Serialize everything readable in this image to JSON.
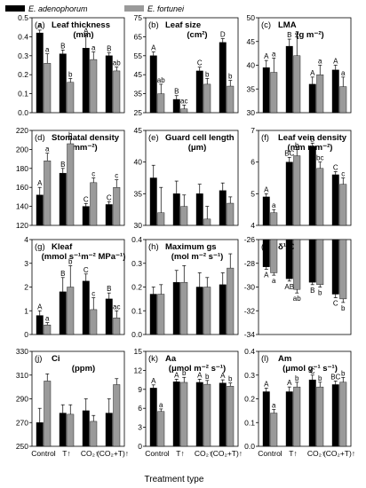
{
  "legend": [
    {
      "name": "E. adenophorum",
      "color": "#000000"
    },
    {
      "name": "E. fortunei",
      "color": "#9a9a9a"
    }
  ],
  "x_axis_title": "Treatment type",
  "chart_data": [
    {
      "type": "bar",
      "panel": "(a)",
      "title": "Leaf thickness",
      "unit": "(mm)",
      "categories": [
        "Control",
        "T↑",
        "CO₂↑",
        "(CO₂+T)↑"
      ],
      "ylim": [
        0,
        0.5
      ],
      "yticks": [
        "0.0",
        "0.1",
        "0.2",
        "0.3",
        "0.4",
        "0.5"
      ],
      "series": [
        {
          "name": "E. adenophorum",
          "values": [
            0.42,
            0.31,
            0.34,
            0.3
          ],
          "errors": [
            0.015,
            0.02,
            0.07,
            0.015
          ]
        },
        {
          "name": "E. fortunei",
          "values": [
            0.26,
            0.16,
            0.28,
            0.22
          ],
          "errors": [
            0.05,
            0.02,
            0.04,
            0.02
          ]
        }
      ],
      "labels": [
        [
          "A",
          "a"
        ],
        [
          "B",
          "b"
        ],
        [
          "A",
          "a"
        ],
        [
          "B",
          "ab"
        ]
      ]
    },
    {
      "type": "bar",
      "panel": "(b)",
      "title": "Leaf size",
      "unit": "(cm²)",
      "categories": [
        "Control",
        "T↑",
        "CO₂↑",
        "(CO₂+T)↑"
      ],
      "ylim": [
        25,
        75
      ],
      "yticks": [
        "25",
        "35",
        "45",
        "55",
        "65",
        "75"
      ],
      "series": [
        {
          "name": "E. adenophorum",
          "values": [
            55,
            32,
            47,
            62
          ],
          "errors": [
            2,
            2,
            2,
            2
          ]
        },
        {
          "name": "E. fortunei",
          "values": [
            35,
            27,
            40,
            39
          ],
          "errors": [
            5,
            2,
            3,
            3
          ]
        }
      ],
      "labels": [
        [
          "A",
          "ab"
        ],
        [
          "B",
          "ac"
        ],
        [
          "C",
          "b"
        ],
        [
          "D",
          "b"
        ]
      ]
    },
    {
      "type": "bar",
      "panel": "(c)",
      "title": "LMA",
      "unit": "(g m⁻²)",
      "categories": [
        "Control",
        "T↑",
        "CO₂↑",
        "(CO₂+T)↑"
      ],
      "ylim": [
        30,
        50
      ],
      "yticks": [
        "30",
        "35",
        "40",
        "45",
        "50"
      ],
      "series": [
        {
          "name": "E. adenophorum",
          "values": [
            39.5,
            44,
            36,
            39
          ],
          "errors": [
            1.5,
            1.5,
            1.5,
            1
          ]
        },
        {
          "name": "E. fortunei",
          "values": [
            38.5,
            42,
            38,
            35.5
          ],
          "errors": [
            3,
            4,
            2,
            2
          ]
        }
      ],
      "labels": [
        [
          "A",
          "a"
        ],
        [
          "B",
          "a"
        ],
        [
          "A",
          "a"
        ],
        [
          "A",
          "a"
        ]
      ]
    },
    {
      "type": "bar",
      "panel": "(d)",
      "title": "Stomatal density",
      "unit": "(mm⁻²)",
      "categories": [
        "Control",
        "T↑",
        "CO₂↑",
        "(CO₂+T)↑"
      ],
      "ylim": [
        120,
        220
      ],
      "yticks": [
        "120",
        "140",
        "160",
        "180",
        "200",
        "220"
      ],
      "series": [
        {
          "name": "E. adenophorum",
          "values": [
            152,
            175,
            140,
            142
          ],
          "errors": [
            8,
            5,
            3,
            3
          ]
        },
        {
          "name": "E. fortunei",
          "values": [
            188,
            206,
            165,
            160
          ],
          "errors": [
            8,
            5,
            5,
            8
          ]
        }
      ],
      "labels": [
        [
          "A",
          "a"
        ],
        [
          "B",
          "b"
        ],
        [
          "C",
          "c"
        ],
        [
          "C",
          "c"
        ]
      ]
    },
    {
      "type": "bar",
      "panel": "(e)",
      "title": "Guard cell length",
      "unit": "(μm)",
      "categories": [
        "Control",
        "T↑",
        "CO₂↑",
        "(CO₂+T)↑"
      ],
      "ylim": [
        30,
        45
      ],
      "yticks": [
        "30",
        "35",
        "40",
        "45"
      ],
      "series": [
        {
          "name": "E. adenophorum",
          "values": [
            37.5,
            35,
            35,
            35.5
          ],
          "errors": [
            2,
            2,
            1.5,
            1.2
          ]
        },
        {
          "name": "E. fortunei",
          "values": [
            32,
            33,
            31,
            33.5
          ],
          "errors": [
            4,
            1.8,
            2,
            1
          ]
        }
      ],
      "labels": [
        [
          "",
          ""
        ],
        [
          "",
          ""
        ],
        [
          "",
          ""
        ],
        [
          "",
          ""
        ]
      ]
    },
    {
      "type": "bar",
      "panel": "(f)",
      "title": "Leaf vein density",
      "unit": "(mm mm⁻²)",
      "categories": [
        "Control",
        "T↑",
        "CO₂↑",
        "(CO₂+T)↑"
      ],
      "ylim": [
        4,
        7
      ],
      "yticks": [
        "4",
        "5",
        "6",
        "7"
      ],
      "series": [
        {
          "name": "E. adenophorum",
          "values": [
            4.9,
            6.0,
            6.5,
            5.6
          ],
          "errors": [
            0.1,
            0.15,
            0.1,
            0.1
          ]
        },
        {
          "name": "E. fortunei",
          "values": [
            4.4,
            6.2,
            5.8,
            5.3
          ],
          "errors": [
            0.1,
            0.2,
            0.2,
            0.2
          ]
        }
      ],
      "labels": [
        [
          "A",
          "a"
        ],
        [
          "BC",
          "b"
        ],
        [
          "B",
          "bc"
        ],
        [
          "C",
          "c"
        ]
      ]
    },
    {
      "type": "bar",
      "panel": "(g)",
      "title": "Kleaf",
      "unit": "(mmol s⁻¹m⁻² MPa⁻¹)",
      "categories": [
        "Control",
        "T↑",
        "CO₂↑",
        "(CO₂+T)↑"
      ],
      "ylim": [
        0,
        4
      ],
      "yticks": [
        "0",
        "1",
        "2",
        "3",
        "4"
      ],
      "series": [
        {
          "name": "E. adenophorum",
          "values": [
            0.8,
            1.8,
            2.25,
            1.5
          ],
          "errors": [
            0.2,
            0.6,
            0.3,
            0.25
          ]
        },
        {
          "name": "E. fortunei",
          "values": [
            0.4,
            2.0,
            1.05,
            0.7
          ],
          "errors": [
            0.1,
            0.9,
            0.5,
            0.3
          ]
        }
      ],
      "labels": [
        [
          "A",
          "a"
        ],
        [
          "B",
          "b"
        ],
        [
          "C",
          "c"
        ],
        [
          "B",
          "ac"
        ]
      ]
    },
    {
      "type": "bar",
      "panel": "(h)",
      "title": "Maximum gs",
      "unit": "(mol m⁻² s⁻¹)",
      "categories": [
        "Control",
        "T↑",
        "CO₂↑",
        "(CO₂+T)↑"
      ],
      "ylim": [
        0,
        0.4
      ],
      "yticks": [
        "0.0",
        "0.1",
        "0.2",
        "0.3",
        "0.4"
      ],
      "series": [
        {
          "name": "E. adenophorum",
          "values": [
            0.17,
            0.22,
            0.2,
            0.21
          ],
          "errors": [
            0.03,
            0.05,
            0.06,
            0.05
          ]
        },
        {
          "name": "E. fortunei",
          "values": [
            0.17,
            0.22,
            0.2,
            0.28
          ],
          "errors": [
            0.04,
            0.07,
            0.04,
            0.06
          ]
        }
      ],
      "labels": [
        [
          "",
          ""
        ],
        [
          "",
          ""
        ],
        [
          "",
          ""
        ],
        [
          "",
          ""
        ]
      ]
    },
    {
      "type": "bar",
      "panel": "(i)",
      "title": "δ¹³C",
      "unit": "",
      "categories": [
        "Control",
        "T↑",
        "CO₂↑",
        "(CO₂+T)↑"
      ],
      "ylim": [
        -34,
        -26
      ],
      "yticks": [
        "-34",
        "-32",
        "-30",
        "-28",
        "-26"
      ],
      "series": [
        {
          "name": "E. adenophorum",
          "values": [
            -28.3,
            -29.3,
            -29.6,
            -30.6
          ],
          "errors": [
            0.2,
            0.2,
            0.2,
            0.3
          ]
        },
        {
          "name": "E. fortunei",
          "values": [
            -28.8,
            -30.2,
            -29.8,
            -31.0
          ],
          "errors": [
            0.2,
            0.3,
            0.2,
            0.3
          ]
        }
      ],
      "labels": [
        [
          "A",
          "a"
        ],
        [
          "AB",
          "ab"
        ],
        [
          "B",
          "b"
        ],
        [
          "C",
          "b"
        ]
      ]
    },
    {
      "type": "bar",
      "panel": "(j)",
      "title": "Ci",
      "unit": "(ppm)",
      "categories": [
        "Control",
        "T↑",
        "CO₂↑",
        "(CO₂+T)↑"
      ],
      "ylim": [
        250,
        330
      ],
      "yticks": [
        "250",
        "270",
        "290",
        "310",
        "330"
      ],
      "series": [
        {
          "name": "E. adenophorum",
          "values": [
            270,
            278,
            280,
            278
          ],
          "errors": [
            12,
            7,
            10,
            12
          ]
        },
        {
          "name": "E. fortunei",
          "values": [
            305,
            277,
            271,
            302
          ],
          "errors": [
            6,
            8,
            5,
            5
          ]
        }
      ],
      "labels": [
        [
          "",
          ""
        ],
        [
          "",
          ""
        ],
        [
          "",
          ""
        ],
        [
          "",
          ""
        ]
      ]
    },
    {
      "type": "bar",
      "panel": "(k)",
      "title": "Aa",
      "unit": "(μmol m⁻² s⁻¹)",
      "categories": [
        "Control",
        "T↑",
        "CO₂↑",
        "(CO₂+T)↑"
      ],
      "ylim": [
        0,
        15
      ],
      "yticks": [
        "0",
        "3",
        "6",
        "9",
        "12",
        "15"
      ],
      "series": [
        {
          "name": "E. adenophorum",
          "values": [
            9.2,
            10.2,
            10.1,
            10.0
          ],
          "errors": [
            0.5,
            0.4,
            0.5,
            0.5
          ]
        },
        {
          "name": "E. fortunei",
          "values": [
            5.5,
            10.1,
            9.8,
            9.5
          ],
          "errors": [
            0.4,
            0.8,
            0.6,
            0.5
          ]
        }
      ],
      "labels": [
        [
          "A",
          "a"
        ],
        [
          "A",
          "b"
        ],
        [
          "A",
          "b"
        ],
        [
          "A",
          "b"
        ]
      ]
    },
    {
      "type": "bar",
      "panel": "(l)",
      "title": "Am",
      "unit": "(μmol g⁻¹ s⁻¹)",
      "categories": [
        "Control",
        "T↑",
        "CO₂↑",
        "(CO₂+T)↑"
      ],
      "ylim": [
        0,
        0.4
      ],
      "yticks": [
        "0.0",
        "0.1",
        "0.2",
        "0.3",
        "0.4"
      ],
      "series": [
        {
          "name": "E. adenophorum",
          "values": [
            0.23,
            0.23,
            0.28,
            0.26
          ],
          "errors": [
            0.015,
            0.02,
            0.02,
            0.015
          ]
        },
        {
          "name": "E. fortunei",
          "values": [
            0.14,
            0.25,
            0.25,
            0.27
          ],
          "errors": [
            0.015,
            0.02,
            0.02,
            0.02
          ]
        }
      ],
      "labels": [
        [
          "A",
          "a"
        ],
        [
          "A",
          "b"
        ],
        [
          "C",
          "b"
        ],
        [
          "BC",
          "b"
        ]
      ]
    }
  ]
}
